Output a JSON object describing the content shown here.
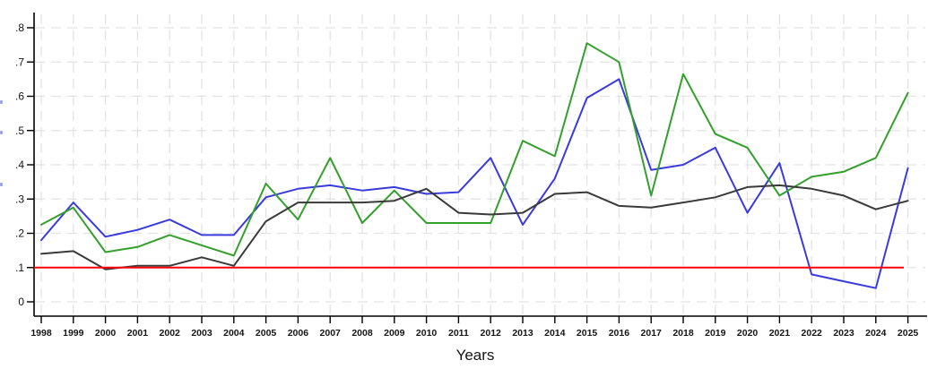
{
  "chart_data": {
    "type": "line",
    "title": "",
    "xlabel": "Years",
    "ylabel": "",
    "x": [
      1998,
      1999,
      2000,
      2001,
      2002,
      2003,
      2004,
      2005,
      2006,
      2007,
      2008,
      2009,
      2010,
      2011,
      2012,
      2013,
      2014,
      2015,
      2016,
      2017,
      2018,
      2019,
      2020,
      2021,
      2022,
      2023,
      2024,
      2025
    ],
    "ylim": [
      0,
      0.8
    ],
    "ytick_values": [
      0,
      0.1,
      0.2,
      0.3,
      0.4,
      0.5,
      0.6,
      0.7,
      0.8
    ],
    "ytick_labels": [
      "0",
      ".1",
      ".2",
      ".3",
      ".4",
      ".5",
      ".6",
      ".7",
      ".8"
    ],
    "grid": true,
    "grid_style": "dashed",
    "legend": "none",
    "series": [
      {
        "name": "blue-series",
        "color": "#3a3bdc",
        "values": [
          0.18,
          0.29,
          0.19,
          0.21,
          0.24,
          0.195,
          0.195,
          0.305,
          0.33,
          0.34,
          0.325,
          0.335,
          0.315,
          0.32,
          0.42,
          0.225,
          0.36,
          0.595,
          0.65,
          0.385,
          0.4,
          0.45,
          0.26,
          0.405,
          0.08,
          0.06,
          0.04,
          0.39
        ]
      },
      {
        "name": "green-series",
        "color": "#33a02c",
        "values": [
          0.225,
          0.275,
          0.145,
          0.16,
          0.195,
          0.165,
          0.135,
          0.345,
          0.24,
          0.42,
          0.23,
          0.325,
          0.23,
          0.23,
          0.23,
          0.47,
          0.425,
          0.755,
          0.7,
          0.31,
          0.665,
          0.49,
          0.45,
          0.31,
          0.365,
          0.38,
          0.42,
          0.61
        ]
      },
      {
        "name": "dark-gray-series",
        "color": "#3a3a3a",
        "values": [
          0.14,
          0.148,
          0.095,
          0.105,
          0.105,
          0.13,
          0.105,
          0.235,
          0.29,
          0.29,
          0.29,
          0.295,
          0.33,
          0.26,
          0.255,
          0.26,
          0.315,
          0.32,
          0.28,
          0.275,
          0.29,
          0.305,
          0.335,
          0.34,
          0.33,
          0.31,
          0.27,
          0.295
        ]
      },
      {
        "name": "red-reference-line",
        "color": "#ff0000",
        "type": "hline",
        "value": 0.1
      }
    ],
    "colors": {
      "grid": "#e3e3e3",
      "axis": "#000000",
      "tick_text": "#151515",
      "background": "#ffffff"
    }
  }
}
